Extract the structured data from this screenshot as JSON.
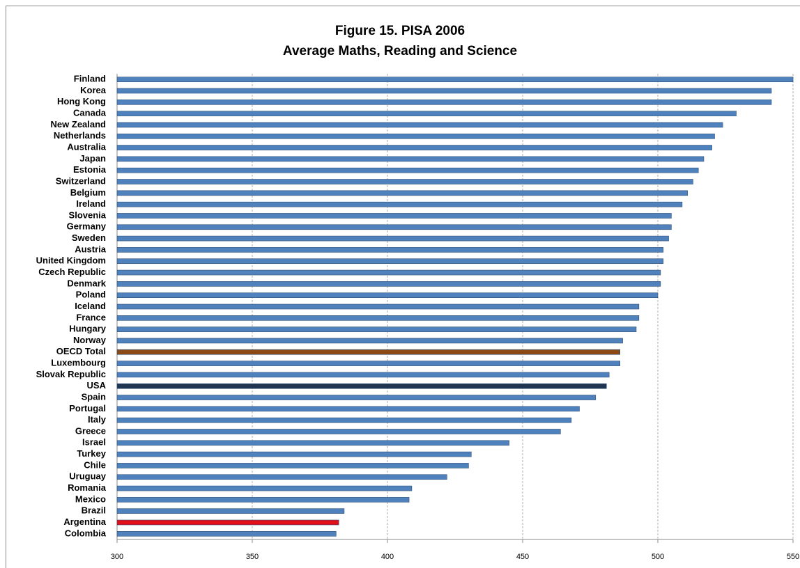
{
  "chart_data": {
    "type": "bar",
    "orientation": "horizontal",
    "title": [
      "Figure 15. PISA 2006",
      "Average Maths,  Reading and Science"
    ],
    "categories": [
      "Finland",
      "Korea",
      "Hong Kong",
      "Canada",
      "New Zealand",
      "Netherlands",
      "Australia",
      "Japan",
      "Estonia",
      "Switzerland",
      "Belgium",
      "Ireland",
      "Slovenia",
      "Germany",
      "Sweden",
      "Austria",
      "United Kingdom",
      "Czech Republic",
      "Denmark",
      "Poland",
      "Iceland",
      "France",
      "Hungary",
      "Norway",
      "OECD Total",
      "Luxembourg",
      "Slovak Republic",
      "USA",
      "Spain",
      "Portugal",
      "Italy",
      "Greece",
      "Israel",
      "Turkey",
      "Chile",
      "Uruguay",
      "Romania",
      "Mexico",
      "Brazil",
      "Argentina",
      "Colombia"
    ],
    "values": [
      550,
      542,
      542,
      529,
      524,
      521,
      520,
      517,
      515,
      513,
      511,
      509,
      505,
      505,
      504,
      502,
      502,
      501,
      501,
      500,
      493,
      493,
      492,
      487,
      486,
      486,
      482,
      481,
      477,
      471,
      468,
      464,
      445,
      431,
      430,
      422,
      409,
      408,
      384,
      382,
      381
    ],
    "colors": [
      "#4f81bd",
      "#4f81bd",
      "#4f81bd",
      "#4f81bd",
      "#4f81bd",
      "#4f81bd",
      "#4f81bd",
      "#4f81bd",
      "#4f81bd",
      "#4f81bd",
      "#4f81bd",
      "#4f81bd",
      "#4f81bd",
      "#4f81bd",
      "#4f81bd",
      "#4f81bd",
      "#4f81bd",
      "#4f81bd",
      "#4f81bd",
      "#4f81bd",
      "#4f81bd",
      "#4f81bd",
      "#4f81bd",
      "#4f81bd",
      "#8b4a14",
      "#4f81bd",
      "#4f81bd",
      "#1f3552",
      "#4f81bd",
      "#4f81bd",
      "#4f81bd",
      "#4f81bd",
      "#4f81bd",
      "#4f81bd",
      "#4f81bd",
      "#4f81bd",
      "#4f81bd",
      "#4f81bd",
      "#4f81bd",
      "#e0101a",
      "#4f81bd"
    ],
    "xlim": [
      300,
      550
    ],
    "xticks": [
      300,
      350,
      400,
      450,
      500,
      550
    ],
    "grid": true
  }
}
